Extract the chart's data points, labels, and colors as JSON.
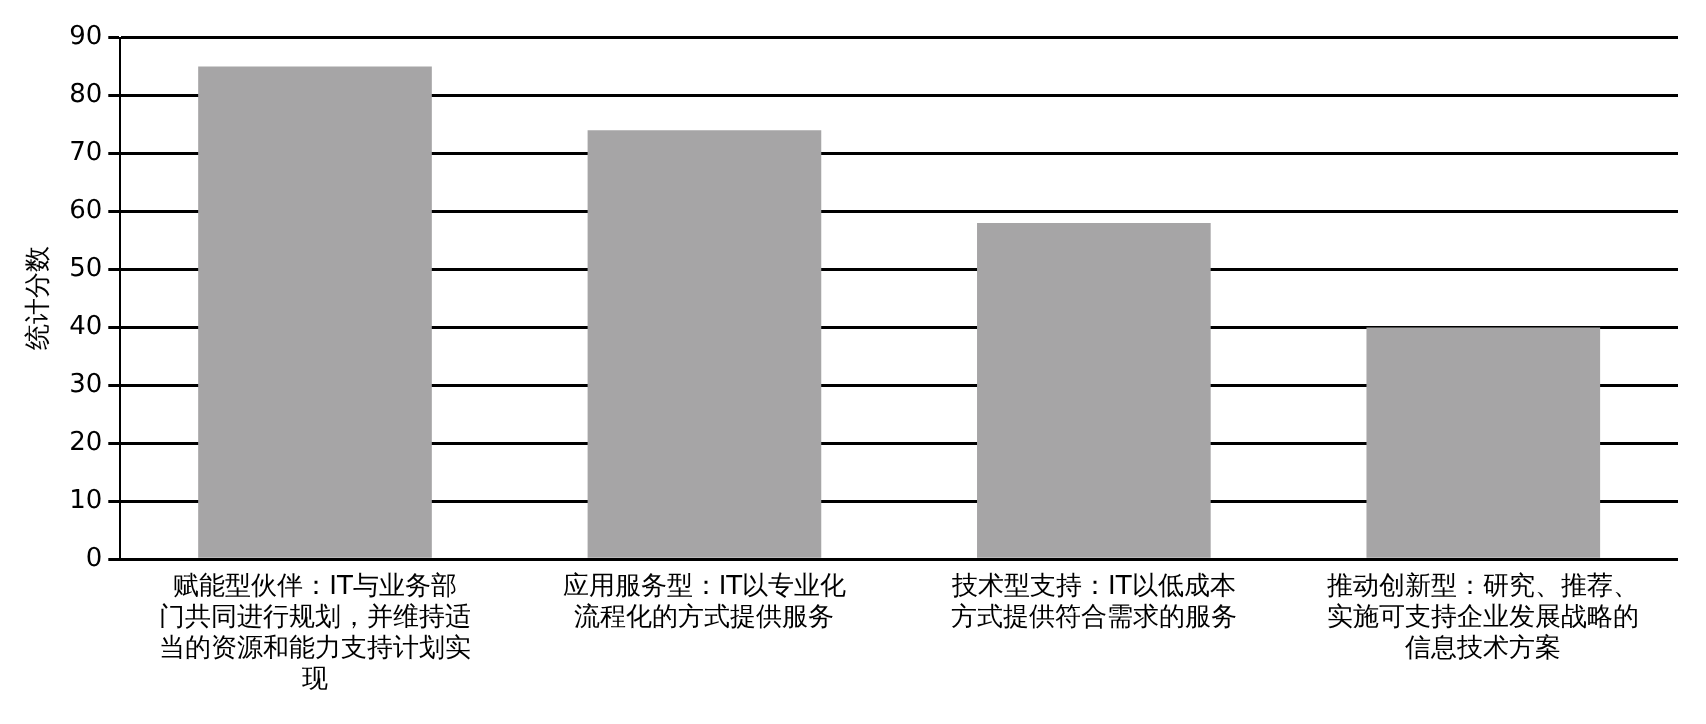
{
  "chart_data": {
    "type": "bar",
    "ylabel": "统计分数",
    "categories": [
      "赋能型伙伴：IT与业务部门共同进行规划，并维持适当的资源和能力支持计划实现",
      "应用服务型：IT以专业化流程化的方式提供服务",
      "技术型支持：IT以低成本方式提供符合需求的服务",
      "推动创新型：研究、推荐、实施可支持企业发展战略的信息技术方案"
    ],
    "values": [
      85,
      74,
      58,
      40
    ],
    "color": "#a6a5a6",
    "ylim": [
      0,
      90
    ],
    "yticks": [
      0,
      10,
      20,
      30,
      40,
      50,
      60,
      70,
      80,
      90
    ],
    "grid": "y",
    "legend": false
  }
}
